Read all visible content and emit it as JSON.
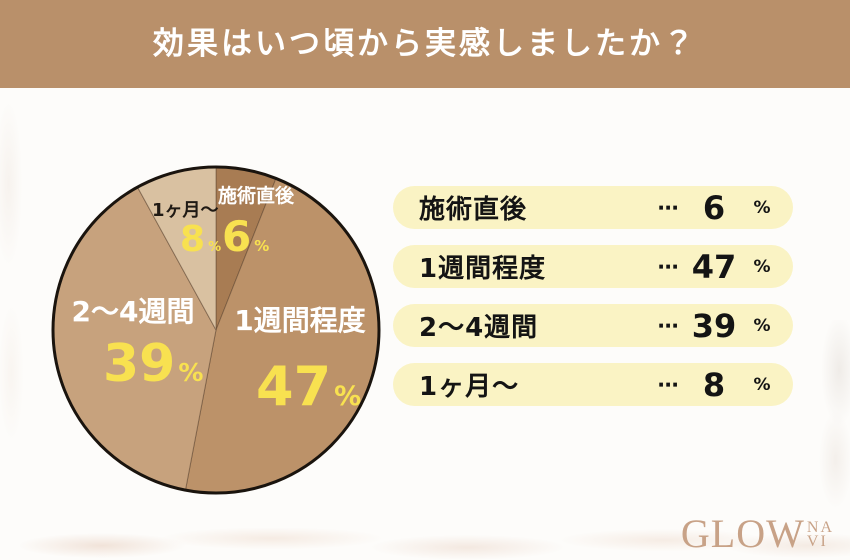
{
  "header": {
    "title": "効果はいつ頃から実感しましたか？",
    "background_color": "#b9906a",
    "text_color": "#ffffff"
  },
  "chart_data": {
    "type": "pie",
    "title": "効果はいつ頃から実感しましたか？",
    "unit": "%",
    "direction": "clockwise",
    "start_angle_deg": 0,
    "categories": [
      "施術直後",
      "1週間程度",
      "2〜4週間",
      "1ヶ月〜"
    ],
    "values": [
      6,
      47,
      39,
      8
    ],
    "slices": [
      {
        "label": "施術直後",
        "value": 6,
        "color": "#a87c53",
        "label_color": "#ffffff"
      },
      {
        "label": "1週間程度",
        "value": 47,
        "color": "#bc9269",
        "label_color": "#ffffff"
      },
      {
        "label": "2〜4週間",
        "value": 39,
        "color": "#c7a27d",
        "label_color": "#ffffff"
      },
      {
        "label": "1ヶ月〜",
        "value": 8,
        "color": "#d9c1a1",
        "label_color": "#201a14"
      }
    ],
    "value_label_color": "#f8e150",
    "outline_color": "#1a140e",
    "slice_divider_color": "rgba(90,66,46,0.5)",
    "legend_position": "right"
  },
  "legend": {
    "separator": "⋯",
    "unit": "%",
    "row_background": "#faf3c4",
    "text_color": "#141414"
  },
  "footer": {
    "logo_main": "GLOW",
    "logo_sub_top": "NA",
    "logo_sub_bottom": "VI",
    "logo_color": "#c8a287"
  }
}
